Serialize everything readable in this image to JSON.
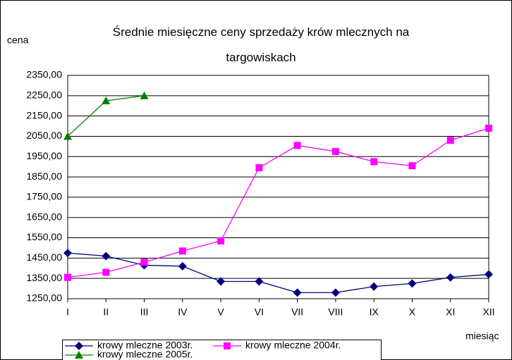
{
  "chart_data": {
    "type": "line",
    "title": "Średnie miesięczne ceny sprzedaży krów mlecznych na targowiskach",
    "y_label": "cena",
    "x_label": "miesiąc",
    "categories": [
      "I",
      "II",
      "III",
      "IV",
      "V",
      "VI",
      "VII",
      "VIII",
      "IX",
      "X",
      "XI",
      "XII"
    ],
    "series": [
      {
        "name": "krowy mleczne 2003r.",
        "color": "#000080",
        "marker": "diamond",
        "values": [
          1475,
          1460,
          1415,
          1410,
          1335,
          1335,
          1280,
          1280,
          1310,
          1325,
          1355,
          1370
        ]
      },
      {
        "name": "krowy mleczne 2004r.",
        "color": "#ff00ff",
        "marker": "square",
        "values": [
          1355,
          1380,
          1430,
          1485,
          1535,
          1895,
          2005,
          1975,
          1925,
          1905,
          2030,
          2090
        ]
      },
      {
        "name": "krowy mleczne 2005r.",
        "color": "#008000",
        "marker": "triangle",
        "values": [
          2050,
          2225,
          2250,
          null,
          null,
          null,
          null,
          null,
          null,
          null,
          null,
          null
        ]
      }
    ],
    "ylim": [
      1250,
      2350
    ],
    "yticks": [
      {
        "value": 1250,
        "label": "1250,00"
      },
      {
        "value": 1350,
        "label": "1350,00"
      },
      {
        "value": 1450,
        "label": "1450,00"
      },
      {
        "value": 1550,
        "label": "1550,00"
      },
      {
        "value": 1650,
        "label": "1650,00"
      },
      {
        "value": 1750,
        "label": "1750,00"
      },
      {
        "value": 1850,
        "label": "1850,00"
      },
      {
        "value": 1950,
        "label": "1950,00"
      },
      {
        "value": 2050,
        "label": "2050,00"
      },
      {
        "value": 2150,
        "label": "2150,00"
      },
      {
        "value": 2250,
        "label": "2250,00"
      },
      {
        "value": 2350,
        "label": "2350,00"
      }
    ],
    "grid": true,
    "legend": "bottom"
  }
}
